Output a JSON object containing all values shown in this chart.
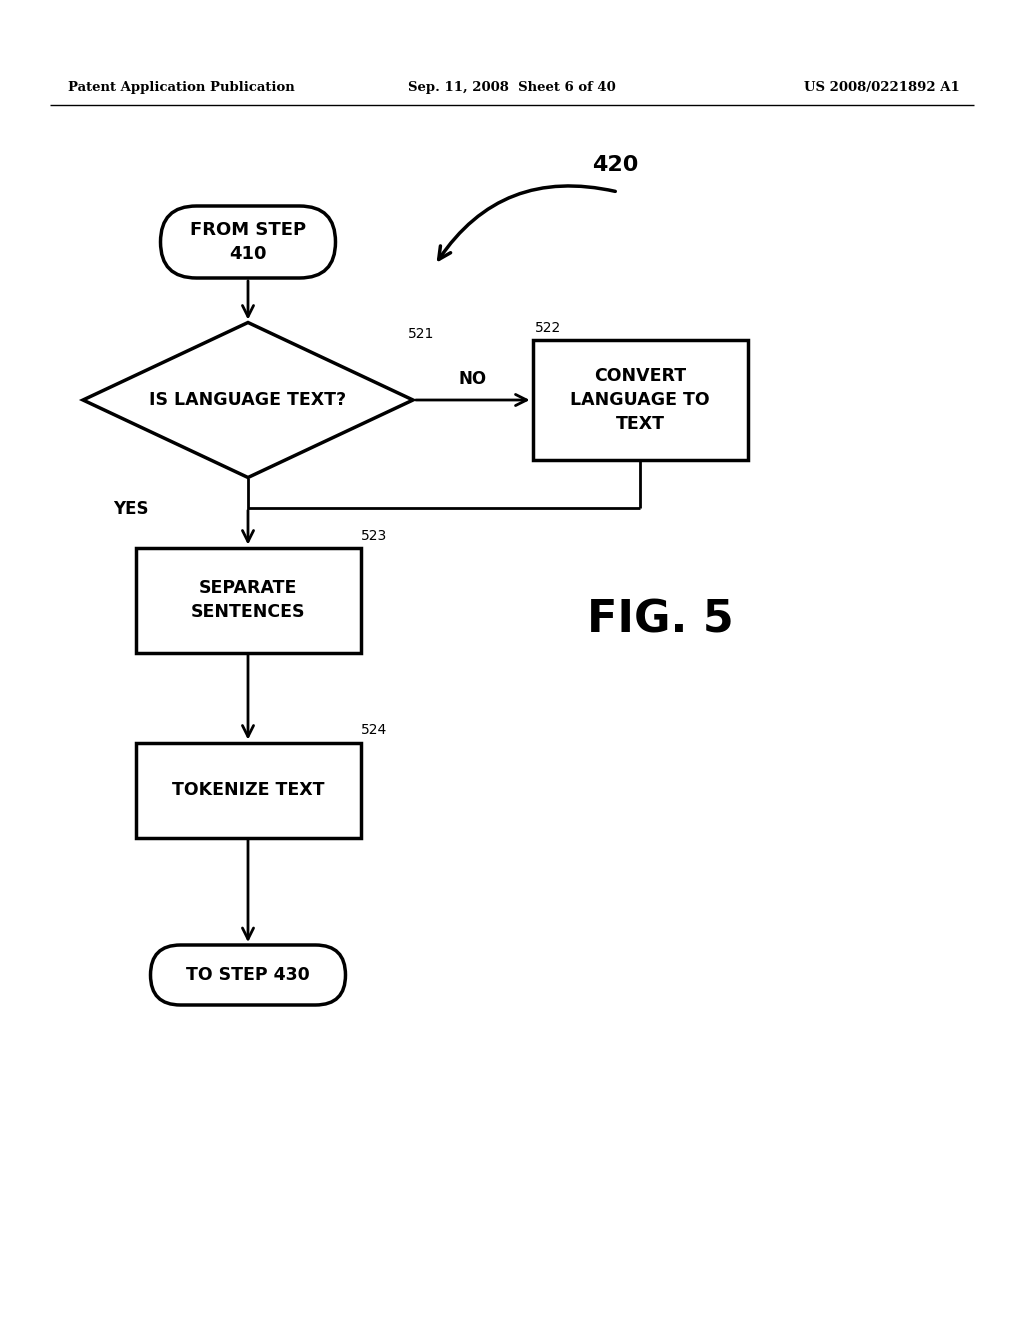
{
  "header_left": "Patent Application Publication",
  "header_mid": "Sep. 11, 2008  Sheet 6 of 40",
  "header_right": "US 2008/0221892 A1",
  "fig_label": "FIG. 5",
  "label_420": "420",
  "label_521": "521",
  "label_522": "522",
  "label_523": "523",
  "label_524": "524",
  "node_from_step": "FROM STEP\n410",
  "node_diamond": "IS LANGUAGE TEXT?",
  "node_convert": "CONVERT\nLANGUAGE TO\nTEXT",
  "node_separate": "SEPARATE\nSENTENCES",
  "node_tokenize": "TOKENIZE TEXT",
  "node_to_step": "TO STEP 430",
  "label_yes": "YES",
  "label_no": "NO",
  "bg_color": "#ffffff",
  "line_color": "#000000",
  "text_color": "#000000"
}
